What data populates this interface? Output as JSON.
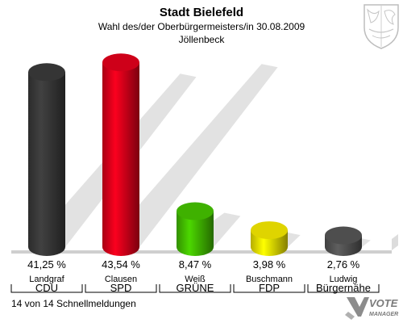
{
  "header": {
    "title": "Stadt Bielefeld",
    "subtitle": "Wahl des/der Oberbürgermeisters/in 30.08.2009",
    "district": "Jöllenbeck"
  },
  "footer": {
    "status": "14 von 14 Schnellmeldungen",
    "logo_top": "VOTE",
    "logo_bottom": "MANAGER"
  },
  "colors": {
    "CDU": "#3a3a3a",
    "SPD": "#e0001b",
    "GRUENE": "#44c000",
    "FDP": "#f2e600",
    "BUERGERNAEHE": "#555555"
  },
  "chart_data": {
    "type": "bar",
    "categories": [
      "Landgraf",
      "Clausen",
      "Weiß",
      "Buschmann",
      "Ludwig"
    ],
    "parties": [
      "CDU",
      "SPD",
      "GRÜNE",
      "FDP",
      "Bürgernähe"
    ],
    "values": [
      41.25,
      43.54,
      8.47,
      3.98,
      2.76
    ],
    "value_labels": [
      "41,25 %",
      "43,54 %",
      "8,47 %",
      "3,98 %",
      "2,76 %"
    ],
    "unit": "%",
    "title": "Stadt Bielefeld",
    "ylim": [
      0,
      45
    ],
    "grid": false,
    "legend": "none"
  }
}
